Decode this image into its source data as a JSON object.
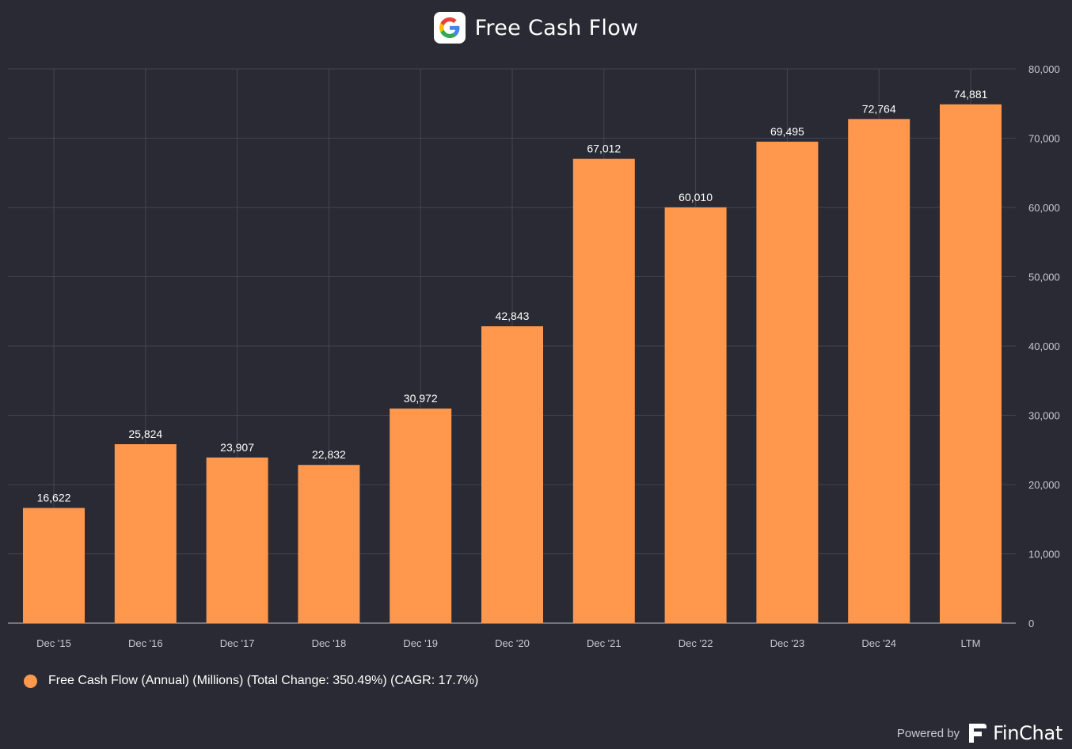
{
  "header": {
    "title": "Free Cash Flow",
    "logo_icon": "google-g-icon"
  },
  "colors": {
    "background": "#292a33",
    "bar": "#ff984d",
    "grid": "#44454e",
    "axis_text": "#c8c8cf",
    "label_text": "#ffffff"
  },
  "chart_data": {
    "type": "bar",
    "title": "Free Cash Flow",
    "categories": [
      "Dec '15",
      "Dec '16",
      "Dec '17",
      "Dec '18",
      "Dec '19",
      "Dec '20",
      "Dec '21",
      "Dec '22",
      "Dec '23",
      "Dec '24",
      "LTM"
    ],
    "series": [
      {
        "name": "Free Cash Flow (Annual) (Millions) (Total Change: 350.49%) (CAGR: 17.7%)",
        "values": [
          16622,
          25824,
          23907,
          22832,
          30972,
          42843,
          67012,
          60010,
          69495,
          72764,
          74881
        ]
      }
    ],
    "data_labels": [
      "16,622",
      "25,824",
      "23,907",
      "22,832",
      "30,972",
      "42,843",
      "67,012",
      "60,010",
      "69,495",
      "72,764",
      "74,881"
    ],
    "yticks": [
      0,
      10000,
      20000,
      30000,
      40000,
      50000,
      60000,
      70000,
      80000
    ],
    "ytick_labels": [
      "0",
      "10,000",
      "20,000",
      "30,000",
      "40,000",
      "50,000",
      "60,000",
      "70,000",
      "80,000"
    ],
    "ylim": [
      0,
      80000
    ],
    "yaxis_side": "right",
    "grid": true,
    "legend_position": "bottom-left"
  },
  "legend": {
    "label": "Free Cash Flow (Annual) (Millions) (Total Change: 350.49%) (CAGR: 17.7%)"
  },
  "footer": {
    "powered_by": "Powered by",
    "brand": "FinChat",
    "brand_icon": "finchat-logo-icon"
  }
}
